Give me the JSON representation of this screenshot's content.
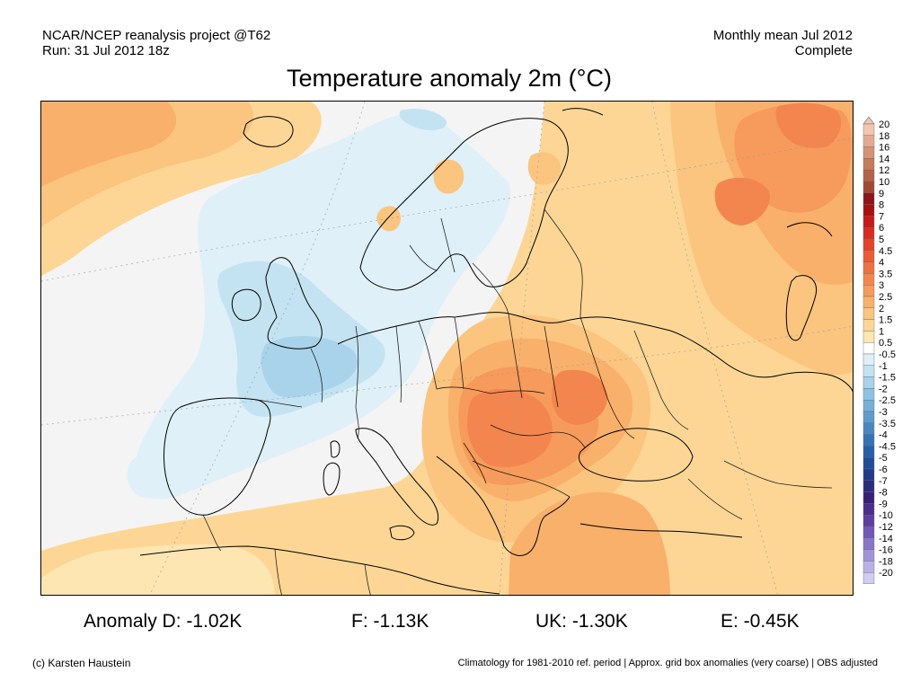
{
  "header": {
    "line1": "NCAR/NCEP reanalysis project @T62",
    "line2": "Run: 31 Jul 2012 18z",
    "right1": "Monthly mean Jul 2012",
    "right2": "Complete"
  },
  "title": "Temperature anomaly 2m (°C)",
  "colorbar": {
    "labels": [
      "20",
      "18",
      "16",
      "14",
      "12",
      "10",
      "9",
      "8",
      "7",
      "6",
      "5",
      "4.5",
      "4",
      "3.5",
      "3",
      "2.5",
      "2",
      "1.5",
      "1",
      "0.5",
      "-0.5",
      "-1",
      "-1.5",
      "-2",
      "-2.5",
      "-3",
      "-3.5",
      "-4",
      "-4.5",
      "-5",
      "-6",
      "-7",
      "-8",
      "-9",
      "-10",
      "-12",
      "-14",
      "-16",
      "-18",
      "-20"
    ],
    "colors": [
      "#f3c6b0",
      "#e3aa90",
      "#d49377",
      "#c47a5d",
      "#b46346",
      "#a04a33",
      "#8b1616",
      "#aa1010",
      "#c81a1a",
      "#d92b22",
      "#e5422c",
      "#ec5a36",
      "#f07241",
      "#f3864e",
      "#f69b5b",
      "#f9b06b",
      "#fbc47f",
      "#fdd696",
      "#fee6b3",
      "#ffffff",
      "#dff0f9",
      "#c4e3f2",
      "#a9d3ea",
      "#8ec2e2",
      "#76b0d8",
      "#5f9ccd",
      "#4987c2",
      "#3672b6",
      "#265fa9",
      "#1e4c99",
      "#213b8a",
      "#2a2c7c",
      "#3a1f7a",
      "#4c2c8c",
      "#5e3ea2",
      "#7359b6",
      "#8a76c8",
      "#a294d8",
      "#b9b1e6",
      "#d0ccf2"
    ]
  },
  "stats": {
    "d": "Anomaly D: -1.02K",
    "f": "F: -1.13K",
    "uk": "UK: -1.30K",
    "e": "E: -0.45K"
  },
  "footer": {
    "left": "(c) Karsten Haustein",
    "right": "Climatology for 1981-2010 ref. period | Approx. grid box anomalies (very coarse) | OBS adjusted"
  }
}
